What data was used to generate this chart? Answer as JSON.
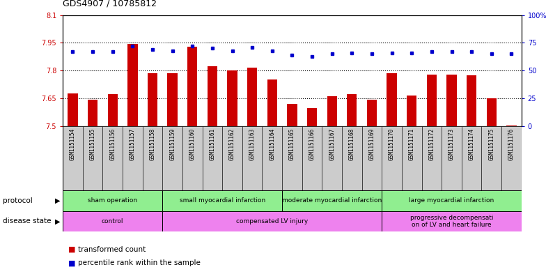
{
  "title": "GDS4907 / 10785812",
  "samples": [
    "GSM1151154",
    "GSM1151155",
    "GSM1151156",
    "GSM1151157",
    "GSM1151158",
    "GSM1151159",
    "GSM1151160",
    "GSM1151161",
    "GSM1151162",
    "GSM1151163",
    "GSM1151164",
    "GSM1151165",
    "GSM1151166",
    "GSM1151167",
    "GSM1151168",
    "GSM1151169",
    "GSM1151170",
    "GSM1151171",
    "GSM1151172",
    "GSM1151173",
    "GSM1151174",
    "GSM1151175",
    "GSM1151176"
  ],
  "transformed_count": [
    7.675,
    7.643,
    7.673,
    7.943,
    7.787,
    7.787,
    7.93,
    7.822,
    7.8,
    7.815,
    7.753,
    7.618,
    7.597,
    7.663,
    7.673,
    7.643,
    7.787,
    7.666,
    7.777,
    7.777,
    7.776,
    7.65,
    7.503
  ],
  "percentile_rank": [
    67,
    67,
    67,
    72,
    69,
    68,
    72,
    70,
    68,
    71,
    68,
    64,
    63,
    65,
    66,
    65,
    66,
    66,
    67,
    67,
    67,
    65,
    65
  ],
  "bar_color": "#cc0000",
  "dot_color": "#0000cc",
  "ylim_left": [
    7.5,
    8.1
  ],
  "ylim_right": [
    0,
    100
  ],
  "yticks_left": [
    7.5,
    7.65,
    7.8,
    7.95,
    8.1
  ],
  "ytick_labels_left": [
    "7.5",
    "7.65",
    "7.8",
    "7.95",
    "8.1"
  ],
  "yticks_right": [
    0,
    25,
    50,
    75,
    100
  ],
  "ytick_labels_right": [
    "0",
    "25",
    "50",
    "75",
    "100%"
  ],
  "hlines": [
    7.65,
    7.8,
    7.95
  ],
  "protocol_boundaries": [
    0,
    5,
    11,
    16,
    23
  ],
  "protocol_labels": [
    "sham operation",
    "small myocardial infarction",
    "moderate myocardial infarction",
    "large myocardial infarction"
  ],
  "protocol_color": "#90ee90",
  "disease_boundaries": [
    0,
    5,
    16,
    23
  ],
  "disease_labels": [
    "control",
    "compensated LV injury",
    "progressive decompensati\non of LV and heart failure"
  ],
  "disease_color": "#ee82ee",
  "sample_bg_color": "#cccccc",
  "legend_bar_color": "#cc0000",
  "legend_dot_color": "#0000cc",
  "legend_bar_label": "transformed count",
  "legend_dot_label": "percentile rank within the sample"
}
